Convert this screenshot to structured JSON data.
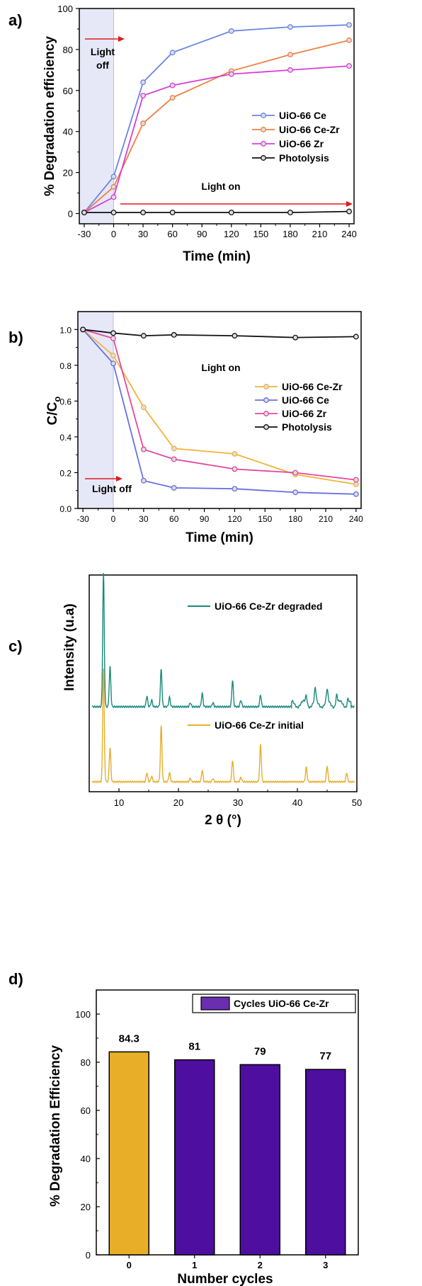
{
  "panels": {
    "a": "a)",
    "b": "b)",
    "c": "c)",
    "d": "d)"
  },
  "chart_data": [
    {
      "type": "line",
      "panel": "a",
      "xlabel": "Time (min)",
      "ylabel": "% Degradation efficiency",
      "x": [
        -30,
        0,
        30,
        60,
        120,
        180,
        240
      ],
      "x_ticks": [
        -30,
        0,
        30,
        60,
        90,
        120,
        150,
        180,
        210,
        240
      ],
      "y_ticks": [
        0,
        20,
        40,
        60,
        80,
        100
      ],
      "xlim": [
        -35,
        245
      ],
      "ylim": [
        -5,
        100
      ],
      "shaded_region": [
        -35,
        0
      ],
      "annotations": {
        "light_off_1": "Light",
        "light_off_2": "off",
        "light_on": "Light on"
      },
      "series": [
        {
          "name": "UiO-66 Ce",
          "color": "#6a86e6",
          "values": [
            0.5,
            18,
            64,
            78.5,
            89,
            91,
            92
          ]
        },
        {
          "name": "UiO-66 Ce-Zr",
          "color": "#f07f43",
          "values": [
            0.5,
            13,
            44,
            56.5,
            69.5,
            77.5,
            84.5
          ]
        },
        {
          "name": "UiO-66 Zr",
          "color": "#d83fd8",
          "values": [
            0.5,
            8,
            57.5,
            62.5,
            68,
            70,
            72
          ]
        },
        {
          "name": "Photolysis",
          "color": "#111111",
          "values": [
            0.5,
            0.5,
            0.5,
            0.5,
            0.5,
            0.5,
            1
          ]
        }
      ]
    },
    {
      "type": "line",
      "panel": "b",
      "xlabel": "Time (min)",
      "ylabel_main": "C/C",
      "ylabel_sub": "o",
      "x": [
        -30,
        0,
        30,
        60,
        120,
        180,
        240
      ],
      "x_ticks": [
        -30,
        0,
        30,
        60,
        90,
        120,
        150,
        180,
        210,
        240
      ],
      "y_ticks": [
        0.0,
        0.2,
        0.4,
        0.6,
        0.8,
        1.0
      ],
      "y_tick_labels": [
        "0.0",
        "0.2",
        "0.4",
        "0.6",
        "0.8",
        "1.0"
      ],
      "xlim": [
        -35,
        245
      ],
      "ylim": [
        0,
        1.1
      ],
      "shaded_region": [
        -35,
        0
      ],
      "annotations": {
        "light_on": "Light on",
        "light_off": "Light off"
      },
      "series": [
        {
          "name": "UiO-66 Ce-Zr",
          "color": "#f0b33c",
          "values": [
            1.0,
            0.855,
            0.565,
            0.335,
            0.305,
            0.19,
            0.135
          ]
        },
        {
          "name": "UiO-66 Ce",
          "color": "#6a70e0",
          "values": [
            1.0,
            0.81,
            0.155,
            0.115,
            0.11,
            0.09,
            0.08
          ]
        },
        {
          "name": "UiO-66 Zr",
          "color": "#e4479c",
          "values": [
            1.0,
            0.95,
            0.33,
            0.275,
            0.22,
            0.2,
            0.16
          ]
        },
        {
          "name": "Photolysis",
          "color": "#111111",
          "values": [
            1.0,
            0.98,
            0.965,
            0.97,
            0.965,
            0.955,
            0.96
          ]
        }
      ]
    },
    {
      "type": "line",
      "panel": "c",
      "xlabel": "2 θ (°)",
      "ylabel": "Intensity (u.a)",
      "x_ticks": [
        10,
        20,
        30,
        40,
        50
      ],
      "xlim": [
        5,
        50
      ],
      "series": [
        {
          "name": "UiO-66 Ce-Zr degraded",
          "color": "#1a8a7a",
          "peaks": [
            [
              7.4,
              1.0
            ],
            [
              8.5,
              0.3
            ],
            [
              14.7,
              0.08
            ],
            [
              15.5,
              0.05
            ],
            [
              17.1,
              0.28
            ],
            [
              18.5,
              0.07
            ],
            [
              22.0,
              0.03
            ],
            [
              24.0,
              0.1
            ],
            [
              25.8,
              0.03
            ],
            [
              29.1,
              0.2
            ],
            [
              30.5,
              0.05
            ],
            [
              33.8,
              0.09
            ],
            [
              41.5,
              0.06
            ],
            [
              43.0,
              0.1
            ],
            [
              45.0,
              0.09
            ],
            [
              46.6,
              0.07
            ],
            [
              48.5,
              0.05
            ]
          ]
        },
        {
          "name": "UiO-66 Ce-Zr initial",
          "color": "#e8ad2b",
          "peaks": [
            [
              7.4,
              1.0
            ],
            [
              8.5,
              0.3
            ],
            [
              14.7,
              0.08
            ],
            [
              15.5,
              0.05
            ],
            [
              17.1,
              0.49
            ],
            [
              18.5,
              0.08
            ],
            [
              22.0,
              0.03
            ],
            [
              24.0,
              0.1
            ],
            [
              25.8,
              0.03
            ],
            [
              29.1,
              0.19
            ],
            [
              30.5,
              0.04
            ],
            [
              33.8,
              0.33
            ],
            [
              41.5,
              0.13
            ],
            [
              45.0,
              0.14
            ],
            [
              48.3,
              0.08
            ]
          ]
        }
      ]
    },
    {
      "type": "bar",
      "panel": "d",
      "xlabel": "Number cycles",
      "ylabel": "% Degradation Efficiency",
      "legend": "Cycles UiO-66 Ce-Zr",
      "categories": [
        "0",
        "1",
        "2",
        "3"
      ],
      "values": [
        84.3,
        81,
        79,
        77
      ],
      "value_labels": [
        "84.3",
        "81",
        "79",
        "77"
      ],
      "colors": [
        "#e8ae28",
        "#4e0ea0",
        "#4e0ea0",
        "#4e0ea0"
      ],
      "legend_color": "#6a2fb0",
      "y_ticks": [
        0,
        20,
        40,
        60,
        80,
        100
      ],
      "ylim": [
        0,
        110
      ]
    }
  ]
}
